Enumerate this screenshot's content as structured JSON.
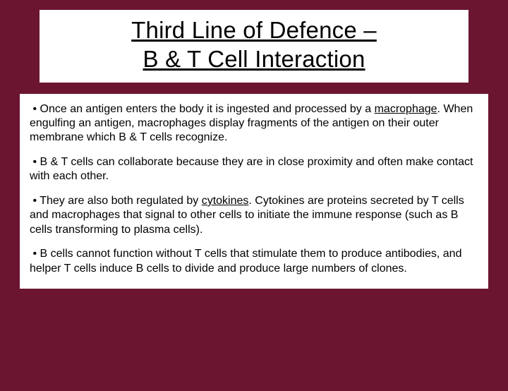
{
  "colors": {
    "background": "#6b1530",
    "box_background": "#ffffff",
    "text": "#000000"
  },
  "title": {
    "line1": "Third Line of Defence –",
    "line2": "B & T Cell Interaction",
    "fontsize": 33
  },
  "bullets": [
    {
      "prefix": " • ",
      "parts": [
        {
          "text": "Once an antigen enters the body it is ingested and processed by a ",
          "underline": false
        },
        {
          "text": "macrophage",
          "underline": true
        },
        {
          "text": ". When engulfing an antigen, macrophages display fragments of the antigen on their outer membrane which B & T cells recognize.",
          "underline": false
        }
      ]
    },
    {
      "prefix": " • ",
      "parts": [
        {
          "text": "B & T cells can collaborate because they are in close proximity and often make contact with each other.",
          "underline": false
        }
      ]
    },
    {
      "prefix": " • ",
      "parts": [
        {
          "text": "They are also both regulated by ",
          "underline": false
        },
        {
          "text": "cytokines",
          "underline": true
        },
        {
          "text": ". Cytokines are proteins secreted by T cells and macrophages that signal to other cells to initiate the immune response (such as B cells transforming to plasma cells).",
          "underline": false
        }
      ]
    },
    {
      "prefix": " • ",
      "parts": [
        {
          "text": "B cells cannot function without T cells that stimulate them to produce antibodies, and helper T cells induce B cells to divide and produce large numbers of clones.",
          "underline": false
        }
      ]
    }
  ],
  "body_fontsize": 16
}
